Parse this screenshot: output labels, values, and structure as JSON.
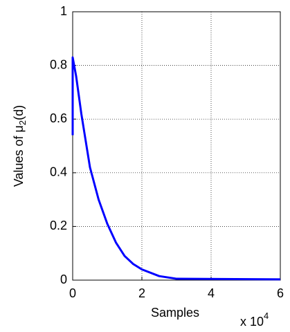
{
  "chart_data": {
    "type": "line",
    "y_label": {
      "prefix": "Values of μ",
      "sub": "2",
      "suffix": "(d)"
    },
    "x_label": "Samples",
    "x_multiplier": {
      "base": "x 10",
      "exp": "4"
    },
    "x": [
      0,
      0,
      0.1,
      0.25,
      0.5,
      0.75,
      1,
      1.25,
      1.5,
      1.75,
      2,
      2.5,
      3,
      6
    ],
    "series": [
      {
        "name": "mu2",
        "color": "#0000ff",
        "values": [
          0.54,
          0.83,
          0.76,
          0.62,
          0.42,
          0.3,
          0.21,
          0.14,
          0.09,
          0.06,
          0.04,
          0.015,
          0.005,
          0.003
        ]
      }
    ],
    "xlim": [
      0,
      6
    ],
    "xticks": [
      0,
      2,
      4,
      6
    ],
    "ylim": [
      0,
      1
    ],
    "yticks": [
      0,
      0.2,
      0.4,
      0.6,
      0.8,
      1
    ],
    "grid": true
  }
}
